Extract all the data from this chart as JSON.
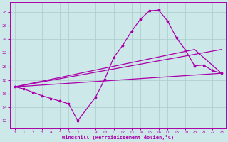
{
  "xlabel": "Windchill (Refroidissement éolien,°C)",
  "bg_color": "#cce8e8",
  "line_color": "#aa00aa",
  "grid_color": "#aacccc",
  "xlim": [
    -0.5,
    23.5
  ],
  "ylim": [
    11.0,
    29.5
  ],
  "yticks": [
    12,
    14,
    16,
    18,
    20,
    22,
    24,
    26,
    28
  ],
  "xticks": [
    0,
    1,
    2,
    3,
    4,
    5,
    6,
    7,
    9,
    10,
    11,
    12,
    13,
    14,
    15,
    16,
    17,
    18,
    19,
    20,
    21,
    22,
    23
  ],
  "line_main": {
    "x": [
      0,
      1,
      2,
      3,
      4,
      5,
      6,
      7,
      9,
      10,
      11,
      12,
      13,
      14,
      15,
      16,
      17,
      18,
      19,
      20,
      21,
      22,
      23
    ],
    "y": [
      17.0,
      16.7,
      16.2,
      15.7,
      15.3,
      14.9,
      14.5,
      12.0,
      15.5,
      18.1,
      21.3,
      23.1,
      25.2,
      27.0,
      28.2,
      28.3,
      26.7,
      24.2,
      22.4,
      20.1,
      20.2,
      19.4,
      19.0
    ]
  },
  "line_upper": {
    "x": [
      0,
      23
    ],
    "y": [
      17.0,
      22.5
    ]
  },
  "line_mid": {
    "x": [
      0,
      20,
      23
    ],
    "y": [
      17.0,
      22.5,
      19.0
    ]
  },
  "line_lower": {
    "x": [
      0,
      23
    ],
    "y": [
      17.0,
      19.0
    ]
  }
}
